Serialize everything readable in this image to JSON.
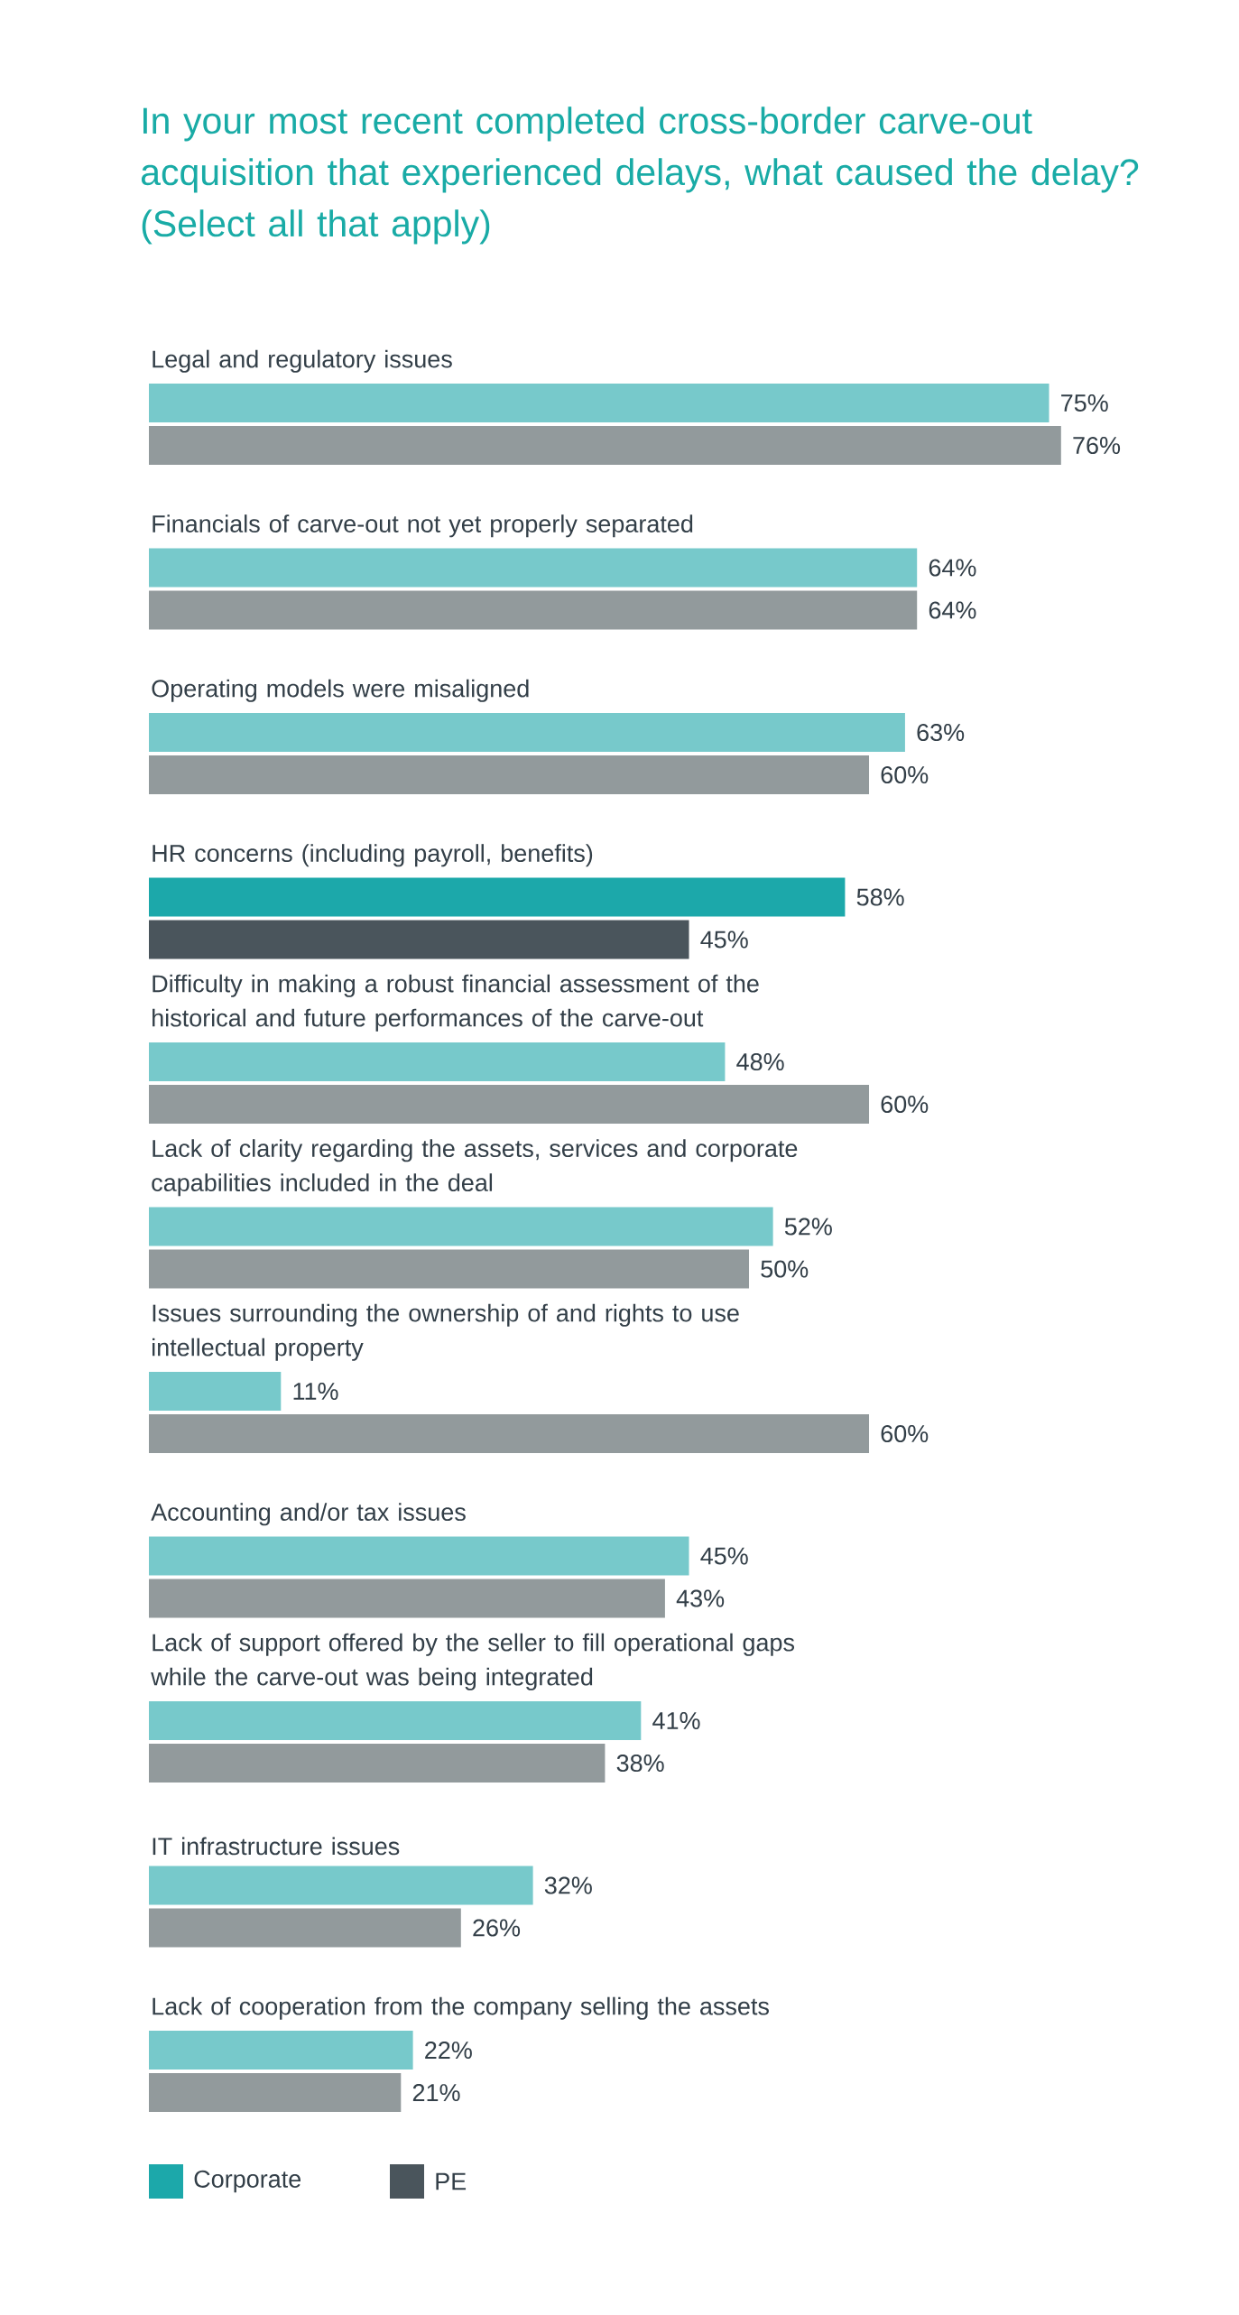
{
  "chart_data": {
    "type": "bar",
    "orientation": "horizontal",
    "title": "In your most recent completed cross-border carve-out acquisition that experienced delays, what caused the delay? (Select all that apply)",
    "categories": [
      "Legal and regulatory issues",
      "Financials of carve-out not yet properly separated",
      "Operating models were misaligned",
      "HR concerns (including payroll, benefits)",
      "Difficulty in making a robust financial assessment of the historical and future performances of the carve-out",
      "Lack of clarity regarding the assets, services and corporate capabilities included in the deal",
      "Issues surrounding the ownership of and rights to use intellectual property",
      "Accounting and/or tax issues",
      "Lack of support offered by the seller to fill operational gaps while the carve-out was being integrated",
      "IT infrastructure issues",
      "Lack of cooperation from the company selling the assets"
    ],
    "series": [
      {
        "name": "Corporate",
        "color": "#1ca8aa",
        "colors": [
          "#77c9cb",
          "#77c9cb",
          "#77c9cb",
          "#1ca8aa",
          "#77c9cb",
          "#77c9cb",
          "#77c9cb",
          "#77c9cb",
          "#77c9cb",
          "#77c9cb",
          "#77c9cb"
        ],
        "values": [
          75,
          64,
          63,
          58,
          48,
          52,
          11,
          45,
          41,
          32,
          22
        ],
        "value_labels": [
          "75%",
          "64%",
          "63%",
          "58%",
          "48%",
          "52%",
          "11%",
          "45%",
          "41%",
          "32%",
          "22%"
        ]
      },
      {
        "name": "PE",
        "color": "#4a555c",
        "colors": [
          "#929a9c",
          "#929a9c",
          "#929a9c",
          "#4a555c",
          "#929a9c",
          "#929a9c",
          "#929a9c",
          "#929a9c",
          "#929a9c",
          "#929a9c",
          "#929a9c"
        ],
        "values": [
          76,
          64,
          60,
          45,
          60,
          50,
          60,
          43,
          38,
          26,
          21
        ],
        "value_labels": [
          "76%",
          "64%",
          "60%",
          "45%",
          "60%",
          "50%",
          "60%",
          "43%",
          "38%",
          "26%",
          "21%"
        ]
      }
    ],
    "legend": "bottom"
  }
}
